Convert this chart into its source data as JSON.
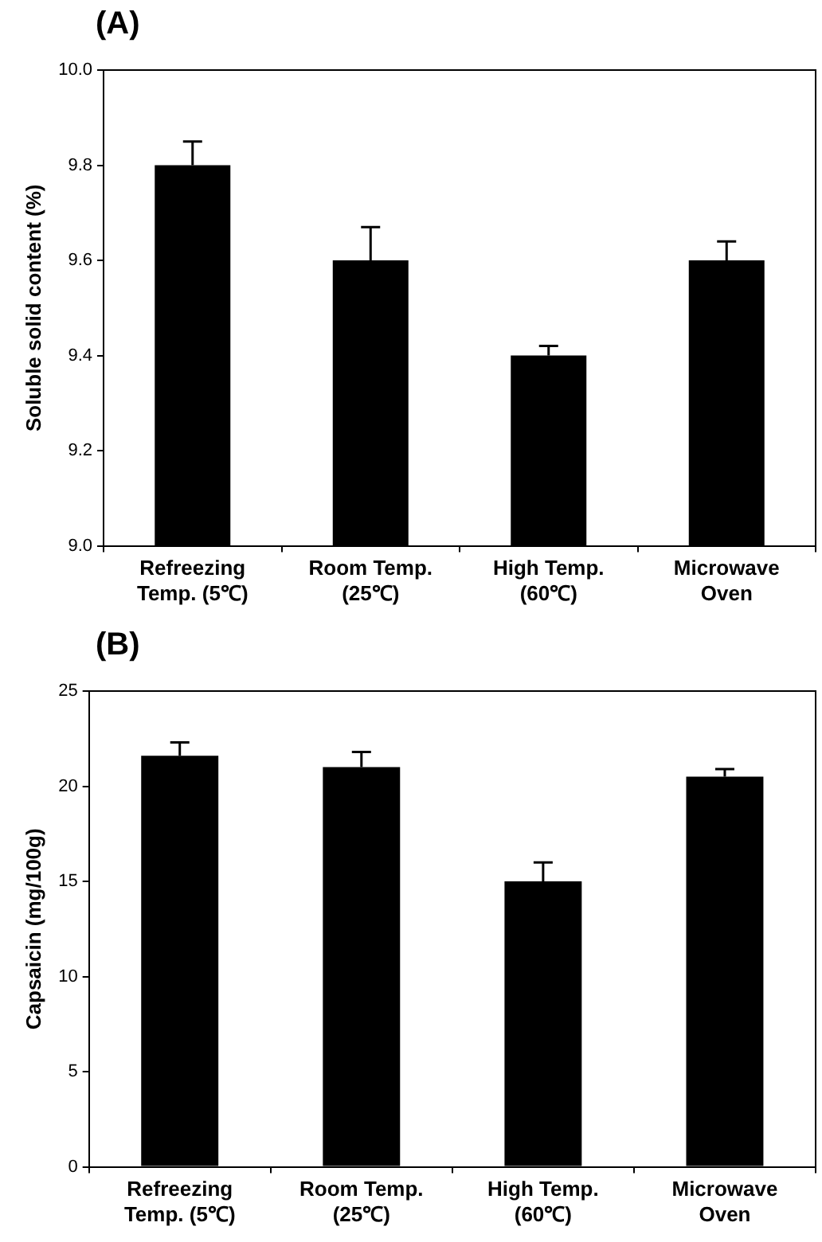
{
  "chart_data": [
    {
      "type": "bar",
      "title": "(A)",
      "ylabel": "Soluble solid content (%)",
      "categories": [
        "Refreezing\nTemp. (5℃)",
        "Room Temp.\n(25℃)",
        "High Temp.\n(60℃)",
        "Microwave\nOven"
      ],
      "values": [
        9.8,
        9.6,
        9.4,
        9.6
      ],
      "color": "#000000",
      "errors": [
        [
          9.8,
          9.85
        ],
        [
          9.6,
          9.67
        ],
        [
          9.4,
          9.42
        ],
        [
          9.6,
          9.64
        ]
      ],
      "ylim": [
        9.0,
        10.0
      ],
      "yticks": [
        {
          "value": 9.0,
          "label": "9.0"
        },
        9.2,
        9.4,
        9.6,
        9.8,
        {
          "value": 10.0,
          "label": "10.0"
        }
      ],
      "grid": false,
      "legend": false
    },
    {
      "type": "bar",
      "title": "(B)",
      "ylabel": "Capsaicin (mg/100g)",
      "categories": [
        "Refreezing\nTemp. (5℃)",
        "Room Temp.\n(25℃)",
        "High Temp.\n(60℃)",
        "Microwave\nOven"
      ],
      "values": [
        21.6,
        21.0,
        15.0,
        20.5
      ],
      "color": "#000000",
      "errors": [
        [
          21.6,
          22.3
        ],
        [
          21.0,
          21.8
        ],
        [
          15.0,
          16.0
        ],
        [
          20.5,
          20.9
        ]
      ],
      "ylim": [
        0,
        25
      ],
      "yticks": [
        0,
        5,
        10,
        15,
        20,
        25
      ],
      "grid": false,
      "legend": false
    }
  ]
}
